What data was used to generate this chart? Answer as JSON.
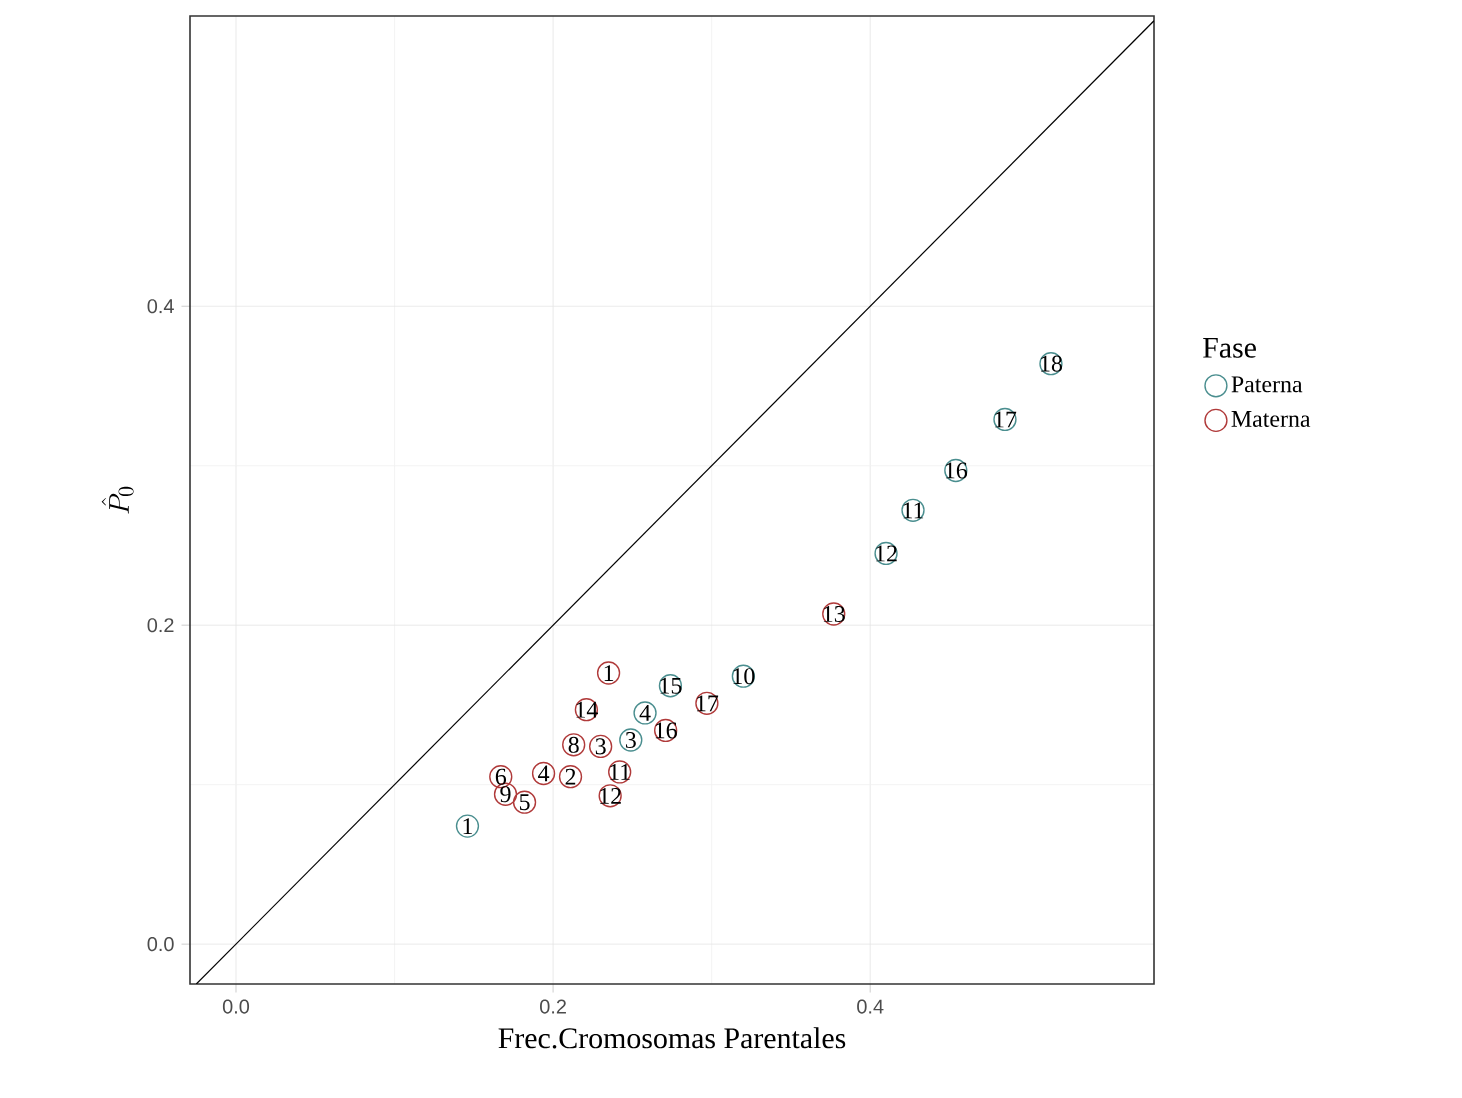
{
  "chart_data": {
    "type": "scatter",
    "xlabel": "Frec.Cromosomas Parentales",
    "ylabel": "\\hat{P}_0",
    "legend_title": "Fase",
    "xlim": [
      -0.029,
      0.579
    ],
    "ylim": [
      -0.025,
      0.582
    ],
    "xticks": [
      {
        "value": 0,
        "label": "0.0"
      },
      0.2,
      0.4
    ],
    "yticks": [
      {
        "value": 0,
        "label": "0.0"
      },
      0.2,
      0.4
    ],
    "grid": true,
    "legend": "right",
    "marker": "circle",
    "series": [
      {
        "name": "Paterna",
        "color": "#4a8e8f",
        "x": [
          0.146,
          0.249,
          0.258,
          0.32,
          0.427,
          0.41,
          0.274,
          0.454,
          0.485,
          0.514
        ],
        "values": [
          0.074,
          0.128,
          0.145,
          0.168,
          0.272,
          0.245,
          0.162,
          0.297,
          0.329,
          0.364
        ]
      },
      {
        "name": "Materna",
        "color": "#b03a3a",
        "x": [
          0.235,
          0.211,
          0.23,
          0.194,
          0.182,
          0.167,
          0.213,
          0.17,
          0.242,
          0.236,
          0.377,
          0.221,
          0.271,
          0.297
        ],
        "values": [
          0.17,
          0.105,
          0.124,
          0.107,
          0.089,
          0.105,
          0.125,
          0.094,
          0.108,
          0.093,
          0.207,
          0.147,
          0.134,
          0.151
        ]
      },
      {
        "type": "line",
        "marker": "none",
        "color": "#000000",
        "x": [
          -0.025,
          0.579
        ],
        "values": [
          -0.025,
          0.579
        ]
      }
    ],
    "annotations": [
      {
        "text": "1",
        "x": 0.146,
        "y": 0.074
      },
      {
        "text": "3",
        "x": 0.249,
        "y": 0.128
      },
      {
        "text": "4",
        "x": 0.258,
        "y": 0.145
      },
      {
        "text": "10",
        "x": 0.32,
        "y": 0.168
      },
      {
        "text": "11",
        "x": 0.427,
        "y": 0.272
      },
      {
        "text": "12",
        "x": 0.41,
        "y": 0.245
      },
      {
        "text": "15",
        "x": 0.274,
        "y": 0.162
      },
      {
        "text": "16",
        "x": 0.454,
        "y": 0.297
      },
      {
        "text": "17",
        "x": 0.485,
        "y": 0.329
      },
      {
        "text": "18",
        "x": 0.514,
        "y": 0.364
      },
      {
        "text": "1",
        "x": 0.235,
        "y": 0.17
      },
      {
        "text": "2",
        "x": 0.211,
        "y": 0.105
      },
      {
        "text": "3",
        "x": 0.23,
        "y": 0.124
      },
      {
        "text": "4",
        "x": 0.194,
        "y": 0.107
      },
      {
        "text": "5",
        "x": 0.182,
        "y": 0.089
      },
      {
        "text": "6",
        "x": 0.167,
        "y": 0.105
      },
      {
        "text": "8",
        "x": 0.213,
        "y": 0.125
      },
      {
        "text": "9",
        "x": 0.17,
        "y": 0.094
      },
      {
        "text": "11",
        "x": 0.242,
        "y": 0.108
      },
      {
        "text": "12",
        "x": 0.236,
        "y": 0.093
      },
      {
        "text": "13",
        "x": 0.377,
        "y": 0.207
      },
      {
        "text": "14",
        "x": 0.221,
        "y": 0.147
      },
      {
        "text": "16",
        "x": 0.271,
        "y": 0.134
      },
      {
        "text": "17",
        "x": 0.297,
        "y": 0.151
      }
    ]
  }
}
